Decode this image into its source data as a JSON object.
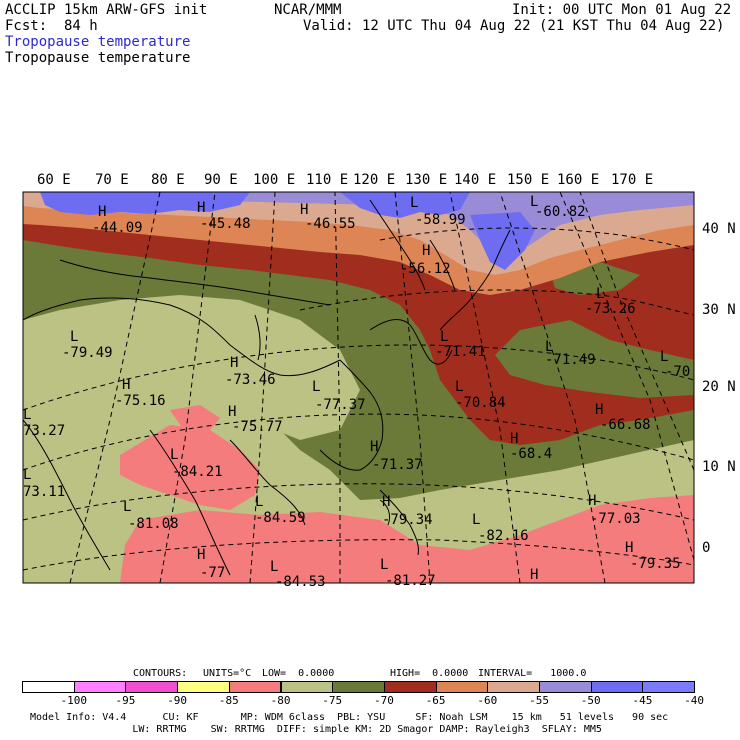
{
  "header": {
    "model": "ACCLIP 15km ARW-GFS init",
    "org": "NCAR/MMM",
    "init": "Init: 00 UTC Mon 01 Aug 22",
    "fcst_label": "Fcst:",
    "fcst_value": "84 h",
    "valid": "Valid: 12 UTC Thu 04 Aug 22 (21 KST Thu 04 Aug 22)",
    "field1": "Tropopause temperature",
    "field2": "Tropopause temperature"
  },
  "map": {
    "lon_labels": [
      "60 E",
      "70 E",
      "80 E",
      "90 E",
      "100 E",
      "110 E",
      "120 E",
      "130 E",
      "140 E",
      "150 E",
      "160 E",
      "170 E"
    ],
    "lat_labels": [
      "40 N",
      "30 N",
      "20 N",
      "10 N",
      "0"
    ],
    "highs_lows": [
      {
        "type": "H",
        "value": "-44.09"
      },
      {
        "type": "H",
        "value": "-45.48"
      },
      {
        "type": "H",
        "value": "-46.55"
      },
      {
        "type": "L",
        "value": "-58.99"
      },
      {
        "type": "L",
        "value": "-60.82"
      },
      {
        "type": "H",
        "value": "-56.12"
      },
      {
        "type": "L",
        "value": "-73.26"
      },
      {
        "type": "L",
        "value": "-79.49"
      },
      {
        "type": "H",
        "value": "-73.46"
      },
      {
        "type": "L",
        "value": "-71.41"
      },
      {
        "type": "L",
        "value": "-71.49"
      },
      {
        "type": "L",
        "value": "-70"
      },
      {
        "type": "H",
        "value": "-75.16"
      },
      {
        "type": "L",
        "value": "-77.37"
      },
      {
        "type": "L",
        "value": "-70.84"
      },
      {
        "type": "H",
        "value": "-66.68"
      },
      {
        "type": "H",
        "value": "-75.77"
      },
      {
        "type": "L",
        "value": "73.27"
      },
      {
        "type": "H",
        "value": "-68.4"
      },
      {
        "type": "L",
        "value": "-84.21"
      },
      {
        "type": "H",
        "value": "-71.37"
      },
      {
        "type": "L",
        "value": "73.11"
      },
      {
        "type": "L",
        "value": "-81.08"
      },
      {
        "type": "L",
        "value": "-84.59"
      },
      {
        "type": "H",
        "value": "-79.34"
      },
      {
        "type": "L",
        "value": "-82.16"
      },
      {
        "type": "H",
        "value": "-77.03"
      },
      {
        "type": "H",
        "value": "-79.35"
      },
      {
        "type": "H",
        "value": "-77"
      },
      {
        "type": "L",
        "value": "-84.53"
      },
      {
        "type": "L",
        "value": "-81.27"
      },
      {
        "type": "H",
        "value": ""
      }
    ],
    "colors": {
      "olive_dark": "#6b7a38",
      "olive_light": "#bcc184",
      "salmon": "#f47c7c",
      "maroon": "#a02d1e",
      "orange": "#de8555",
      "pink_tan": "#dba890",
      "lavender": "#9a8bd6",
      "blue": "#6e6cf0"
    }
  },
  "contours": {
    "label": "CONTOURS:",
    "units": "UNITS=°C",
    "low": "LOW=  0.0000",
    "high": "HIGH=  0.0000",
    "interval": "INTERVAL=   1000.0"
  },
  "colorbar": {
    "colors": [
      "#ffffff",
      "#ff80ff",
      "#f050d0",
      "#ffff80",
      "#f47c7c",
      "#bcc184",
      "#6b7a38",
      "#a02d1e",
      "#de8555",
      "#dba890",
      "#9a8bd6",
      "#6e6cf0",
      "#7b7bff"
    ],
    "labels": [
      "-100",
      "-95",
      "-90",
      "-85",
      "-80",
      "-75",
      "-70",
      "-65",
      "-60",
      "-55",
      "-50",
      "-45",
      "-40",
      "°C"
    ]
  },
  "footer": {
    "line1": "Model Info: V4.4      CU: KF       MP: WDM 6class  PBL: YSU     SF: Noah LSM    15 km   51 levels   90 sec",
    "line2": "                 LW: RRTMG    SW: RRTMG  DIFF: simple KM: 2D Smagor DAMP: Rayleigh3  SFLAY: MM5"
  }
}
